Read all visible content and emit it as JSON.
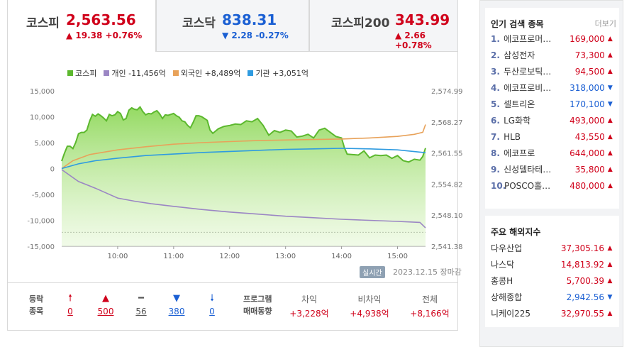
{
  "tabs": [
    {
      "name": "코스피",
      "value": "2,563.56",
      "change": "▲ 19.38 +0.76%",
      "dir": "up"
    },
    {
      "name": "코스닥",
      "value": "838.31",
      "change": "▼ 2.28 -0.27%",
      "dir": "down"
    },
    {
      "name": "코스피200",
      "value": "343.99",
      "change": "▲ 2.66 +0.78%",
      "dir": "up"
    }
  ],
  "legend": [
    {
      "label": "코스피",
      "color": "#5cb82e"
    },
    {
      "label": "개인 -11,456억",
      "color": "#9b86c4"
    },
    {
      "label": "외국인 +8,489억",
      "color": "#e8a25a"
    },
    {
      "label": "기관 +3,051억",
      "color": "#2f9be0"
    }
  ],
  "chart_data": {
    "type": "line",
    "x_ticks": [
      "10:00",
      "11:00",
      "12:00",
      "13:00",
      "14:00",
      "15:00"
    ],
    "y_left_ticks": [
      "15,000",
      "10,000",
      "5,000",
      "0",
      "-5,000",
      "-10,000",
      "-15,000"
    ],
    "y_right_ticks": [
      "2,574.99",
      "2,568.27",
      "2,561.55",
      "2,554.82",
      "2,548.10",
      "2,541.38"
    ],
    "ylim_left": [
      -15000,
      15000
    ],
    "ylim_right": [
      2541.38,
      2574.99
    ],
    "x_range": [
      9.0,
      15.5
    ],
    "series": [
      {
        "name": "코스피",
        "axis": "right",
        "x": [
          9.0,
          9.05,
          9.1,
          9.15,
          9.2,
          9.25,
          9.3,
          9.35,
          9.4,
          9.45,
          9.5,
          9.55,
          9.6,
          9.65,
          9.7,
          9.75,
          9.8,
          9.85,
          9.9,
          9.95,
          10.0,
          10.05,
          10.1,
          10.15,
          10.2,
          10.25,
          10.3,
          10.35,
          10.4,
          10.45,
          10.5,
          10.55,
          10.6,
          10.65,
          10.7,
          10.75,
          10.8,
          10.85,
          10.9,
          10.95,
          11.0,
          11.05,
          11.1,
          11.15,
          11.2,
          11.25,
          11.3,
          11.35,
          11.4,
          11.45,
          11.5,
          11.55,
          11.6,
          11.65,
          11.7,
          11.8,
          11.9,
          12.0,
          12.1,
          12.2,
          12.3,
          12.4,
          12.5,
          12.6,
          12.7,
          12.8,
          12.9,
          13.0,
          13.1,
          13.2,
          13.3,
          13.4,
          13.5,
          13.6,
          13.7,
          13.8,
          13.9,
          14.0,
          14.05,
          14.1,
          14.2,
          14.3,
          14.4,
          14.5,
          14.6,
          14.7,
          14.8,
          14.9,
          15.0,
          15.1,
          15.2,
          15.3,
          15.4,
          15.45,
          15.5
        ],
        "values": [
          2559.8,
          2561.5,
          2563.0,
          2563.0,
          2562.5,
          2563.8,
          2565.7,
          2566.0,
          2566.0,
          2566.5,
          2568.5,
          2569.9,
          2569.5,
          2570.0,
          2569.6,
          2569.1,
          2568.5,
          2569.9,
          2569.6,
          2569.8,
          2570.5,
          2570.1,
          2568.7,
          2569.0,
          2570.8,
          2571.3,
          2571.0,
          2570.9,
          2571.5,
          2570.5,
          2569.8,
          2570.1,
          2570.0,
          2570.4,
          2570.7,
          2570.0,
          2569.0,
          2569.8,
          2569.7,
          2569.9,
          2570.1,
          2569.6,
          2569.3,
          2568.5,
          2568.3,
          2567.5,
          2567.0,
          2568.2,
          2569.6,
          2569.6,
          2569.4,
          2569.0,
          2568.6,
          2566.5,
          2565.8,
          2566.8,
          2567.3,
          2567.5,
          2567.8,
          2567.7,
          2568.5,
          2568.3,
          2569.0,
          2567.5,
          2565.4,
          2566.4,
          2566.0,
          2566.5,
          2566.3,
          2565.0,
          2565.2,
          2565.6,
          2564.8,
          2566.5,
          2566.9,
          2566.0,
          2565.1,
          2564.8,
          2562.7,
          2561.3,
          2561.2,
          2561.1,
          2562.0,
          2560.5,
          2561.1,
          2561.0,
          2561.1,
          2560.4,
          2561.0,
          2559.9,
          2559.6,
          2560.2,
          2560.0,
          2560.8,
          2562.6
        ]
      },
      {
        "name": "개인",
        "axis": "left",
        "x": [
          9.0,
          9.3,
          9.6,
          10.0,
          10.3,
          10.6,
          11.0,
          11.5,
          12.0,
          12.5,
          13.0,
          13.5,
          14.0,
          14.5,
          15.0,
          15.4,
          15.5
        ],
        "values": [
          -200,
          -2500,
          -3800,
          -5700,
          -6300,
          -6800,
          -7300,
          -7900,
          -8400,
          -8800,
          -9200,
          -9500,
          -9800,
          -10000,
          -10200,
          -10400,
          -11456
        ]
      },
      {
        "name": "외국인",
        "axis": "left",
        "x": [
          9.0,
          9.2,
          9.5,
          10.0,
          10.5,
          11.0,
          11.5,
          12.0,
          12.5,
          13.0,
          13.5,
          14.0,
          14.5,
          15.0,
          15.3,
          15.45,
          15.5
        ],
        "values": [
          0,
          1500,
          2700,
          3600,
          4200,
          4700,
          5000,
          5200,
          5400,
          5500,
          5600,
          5700,
          5900,
          6200,
          6600,
          7000,
          8489
        ]
      },
      {
        "name": "기관",
        "axis": "left",
        "x": [
          9.0,
          9.3,
          9.6,
          10.0,
          10.5,
          11.0,
          11.5,
          12.0,
          12.5,
          13.0,
          13.5,
          14.0,
          14.5,
          15.0,
          15.5
        ],
        "values": [
          0,
          900,
          1500,
          2000,
          2500,
          2800,
          3100,
          3300,
          3500,
          3700,
          3800,
          3900,
          3800,
          3600,
          3051
        ]
      }
    ]
  },
  "chart_footer": {
    "realtime": "실시간",
    "date": "2023.12.15 장마감"
  },
  "breadth": {
    "label1": "등락",
    "label2": "종목",
    "items": [
      {
        "icon": "🠕",
        "value": "0",
        "color": "#d0021b"
      },
      {
        "icon": "▲",
        "value": "500",
        "color": "#d0021b"
      },
      {
        "icon": "━",
        "value": "56",
        "color": "#555555"
      },
      {
        "icon": "▼",
        "value": "380",
        "color": "#1a5fd3"
      },
      {
        "icon": "🠗",
        "value": "0",
        "color": "#1a5fd3"
      }
    ]
  },
  "program": {
    "label1": "프로그램",
    "label2": "매매동향",
    "cols": [
      {
        "title": "차익",
        "value": "+3,228억"
      },
      {
        "title": "비차익",
        "value": "+4,938억"
      },
      {
        "title": "전체",
        "value": "+8,166억"
      }
    ]
  },
  "popular": {
    "title": "인기 검색 종목",
    "more": "더보기",
    "items": [
      {
        "rank": "1.",
        "name": "에코프로머…",
        "price": "169,000",
        "dir": "up"
      },
      {
        "rank": "2.",
        "name": "삼성전자",
        "price": "73,300",
        "dir": "up"
      },
      {
        "rank": "3.",
        "name": "두산로보틱…",
        "price": "94,500",
        "dir": "up"
      },
      {
        "rank": "4.",
        "name": "에코프로비…",
        "price": "318,000",
        "dir": "down"
      },
      {
        "rank": "5.",
        "name": "셀트리온",
        "price": "170,100",
        "dir": "down"
      },
      {
        "rank": "6.",
        "name": "LG화학",
        "price": "493,000",
        "dir": "up"
      },
      {
        "rank": "7.",
        "name": "HLB",
        "price": "43,550",
        "dir": "up"
      },
      {
        "rank": "8.",
        "name": "에코프로",
        "price": "644,000",
        "dir": "up"
      },
      {
        "rank": "9.",
        "name": "신성델타테…",
        "price": "35,800",
        "dir": "up"
      },
      {
        "rank": "10.",
        "name": "POSCO홀…",
        "price": "480,000",
        "dir": "up"
      }
    ]
  },
  "overseas": {
    "title": "주요 해외지수",
    "items": [
      {
        "name": "다우산업",
        "value": "37,305.16",
        "dir": "up"
      },
      {
        "name": "나스닥",
        "value": "14,813.92",
        "dir": "up"
      },
      {
        "name": "홍콩H",
        "value": "5,700.39",
        "dir": "up"
      },
      {
        "name": "상해종합",
        "value": "2,942.56",
        "dir": "down"
      },
      {
        "name": "니케이225",
        "value": "32,970.55",
        "dir": "up"
      }
    ]
  },
  "colors": {
    "up": "#d0021b",
    "down": "#1a5fd3",
    "kospi": "#5cb82e"
  }
}
